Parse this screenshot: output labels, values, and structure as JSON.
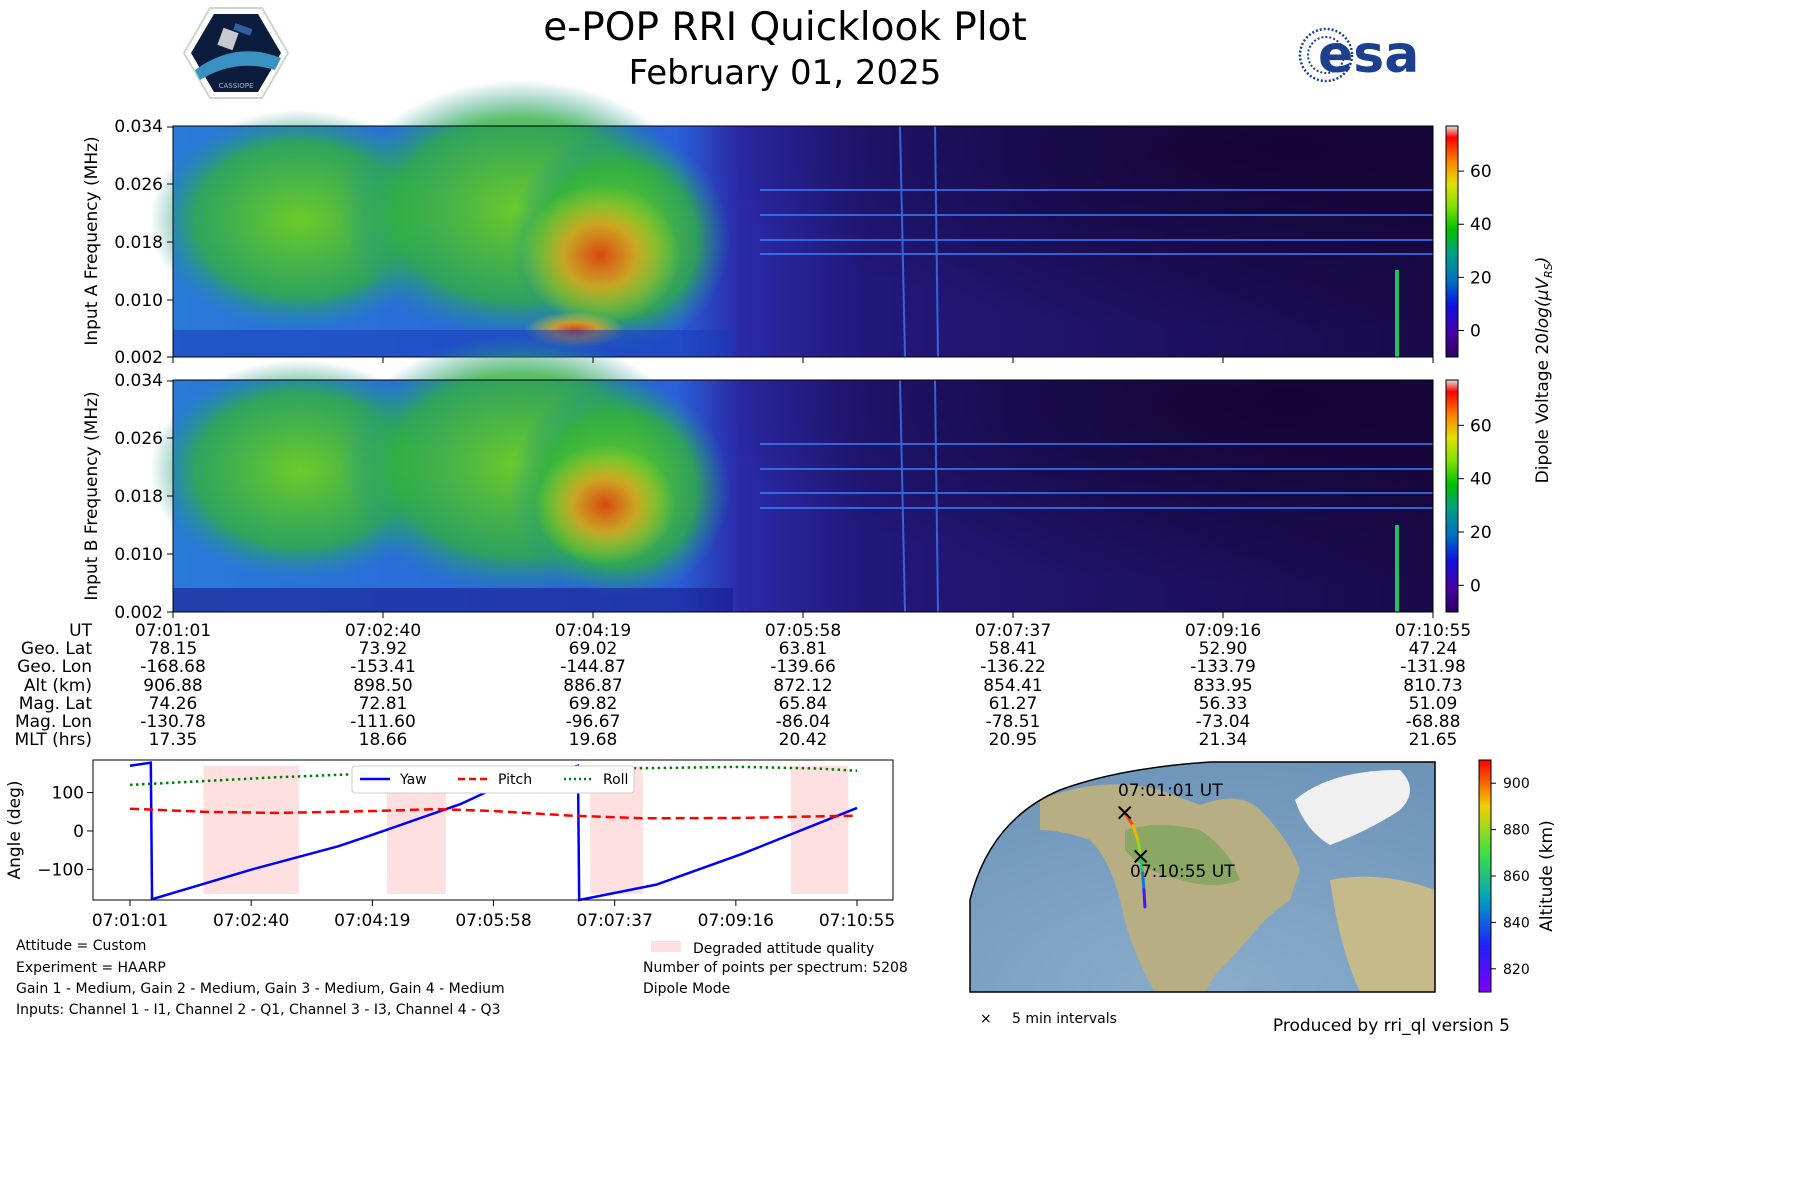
{
  "header": {
    "title": "e-POP RRI Quicklook Plot",
    "date": "February 01, 2025",
    "mission_logo_text": "CASSIOPE",
    "agency_logo_text": "esa"
  },
  "colors": {
    "yaw": "#0000ff",
    "pitch": "#ff0000",
    "roll": "#008000",
    "degraded": "#ffe0e0"
  },
  "chart_data": [
    {
      "type": "heatmap",
      "name": "input-a-spectrogram",
      "ylabel": "Input A Frequency (MHz)",
      "yticks": [
        "0.002",
        "0.010",
        "0.018",
        "0.026",
        "0.034"
      ],
      "ylim": [
        0.002,
        0.034
      ],
      "colorbar_ticks": [
        "0",
        "20",
        "40",
        "60"
      ],
      "colorbar_range": [
        -10,
        77
      ]
    },
    {
      "type": "heatmap",
      "name": "input-b-spectrogram",
      "ylabel": "Input B Frequency (MHz)",
      "yticks": [
        "0.002",
        "0.010",
        "0.018",
        "0.026",
        "0.034"
      ],
      "ylim": [
        0.002,
        0.034
      ],
      "colorbar_ticks": [
        "0",
        "20",
        "40",
        "60"
      ],
      "colorbar_range": [
        -10,
        77
      ],
      "colorbar_label_prefix": "Dipole Voltage 20",
      "colorbar_label_log": "log",
      "colorbar_label_unit": "(μV",
      "colorbar_label_sub": "RS",
      "colorbar_label_end": ")"
    },
    {
      "type": "table",
      "name": "ephemeris",
      "row_labels": [
        "UT",
        "Geo. Lat",
        "Geo. Lon",
        "Alt (km)",
        "Mag. Lat",
        "Mag. Lon",
        "MLT (hrs)"
      ],
      "columns": [
        [
          "07:01:01",
          "78.15",
          "-168.68",
          "906.88",
          "74.26",
          "-130.78",
          "17.35"
        ],
        [
          "07:02:40",
          "73.92",
          "-153.41",
          "898.50",
          "72.81",
          "-111.60",
          "18.66"
        ],
        [
          "07:04:19",
          "69.02",
          "-144.87",
          "886.87",
          "69.82",
          "-96.67",
          "19.68"
        ],
        [
          "07:05:58",
          "63.81",
          "-139.66",
          "872.12",
          "65.84",
          "-86.04",
          "20.42"
        ],
        [
          "07:07:37",
          "58.41",
          "-136.22",
          "854.41",
          "61.27",
          "-78.51",
          "20.95"
        ],
        [
          "07:09:16",
          "52.90",
          "-133.79",
          "833.95",
          "56.33",
          "-73.04",
          "21.34"
        ],
        [
          "07:10:55",
          "47.24",
          "-131.98",
          "810.73",
          "51.09",
          "-68.88",
          "21.65"
        ]
      ]
    },
    {
      "type": "line",
      "name": "attitude",
      "ylabel": "Angle (deg)",
      "xlim": [
        0,
        594
      ],
      "ylim": [
        -180,
        185
      ],
      "yticks": [
        100,
        0,
        -100
      ],
      "ytick_labels": [
        "100",
        "0",
        "−100"
      ],
      "xtick_labels": [
        "07:01:01",
        "07:02:40",
        "07:04:19",
        "07:05:58",
        "07:07:37",
        "07:09:16",
        "07:10:55"
      ],
      "xticks": [
        0,
        99,
        198,
        297,
        396,
        495,
        594
      ],
      "series": [
        {
          "name": "Yaw",
          "style": "solid",
          "x": [
            0,
            17,
            18,
            100,
            170,
            198,
            270,
            297,
            366,
            367,
            430,
            500,
            594
          ],
          "y": [
            170,
            178,
            -178,
            -100,
            -40,
            -10,
            70,
            110,
            170,
            -180,
            -140,
            -60,
            60
          ]
        },
        {
          "name": "Pitch",
          "style": "dashed",
          "x": [
            0,
            60,
            120,
            200,
            250,
            297,
            360,
            420,
            500,
            560,
            594
          ],
          "y": [
            58,
            50,
            47,
            52,
            57,
            52,
            40,
            33,
            34,
            38,
            40
          ]
        },
        {
          "name": "Roll",
          "style": "dotted",
          "x": [
            0,
            60,
            120,
            200,
            297,
            400,
            500,
            560,
            594
          ],
          "y": [
            120,
            130,
            140,
            150,
            157,
            163,
            167,
            163,
            157
          ]
        }
      ],
      "degraded_intervals": [
        [
          60,
          138
        ],
        [
          210,
          258
        ],
        [
          376,
          419
        ],
        [
          540,
          587
        ]
      ]
    },
    {
      "type": "scatter",
      "name": "orbit-track-map",
      "start_label": "07:01:01 UT",
      "end_label": "07:10:55 UT",
      "colorbar_label": "Altitude (km)",
      "colorbar_ticks": [
        "820",
        "840",
        "860",
        "880",
        "900"
      ],
      "colorbar_range": [
        810,
        910
      ],
      "track_geo_lat": [
        78.15,
        73.92,
        69.02,
        63.81,
        58.41,
        52.9,
        47.24
      ],
      "track_geo_lon": [
        -168.68,
        -153.41,
        -144.87,
        -139.66,
        -136.22,
        -133.79,
        -131.98
      ],
      "track_alt": [
        906.88,
        898.5,
        886.87,
        872.12,
        854.41,
        833.95,
        810.73
      ]
    }
  ],
  "legend": {
    "yaw": "Yaw",
    "pitch": "Pitch",
    "roll": "Roll"
  },
  "info_left": [
    "Attitude = Custom",
    "Experiment = HAARP",
    "Gain 1 - Medium, Gain 2 - Medium, Gain 3 - Medium, Gain 4 - Medium",
    "Inputs: Channel 1 - I1, Channel 2 - Q1, Channel 3 - I3, Channel 4 - Q3"
  ],
  "info_right": {
    "degraded_label": "Degraded attitude quality",
    "points": "Number of points per spectrum: 5208",
    "mode": "Dipole Mode"
  },
  "map_legend": {
    "marker": "×",
    "text": "5 min intervals"
  },
  "footer": "Produced by rri_ql version 5"
}
